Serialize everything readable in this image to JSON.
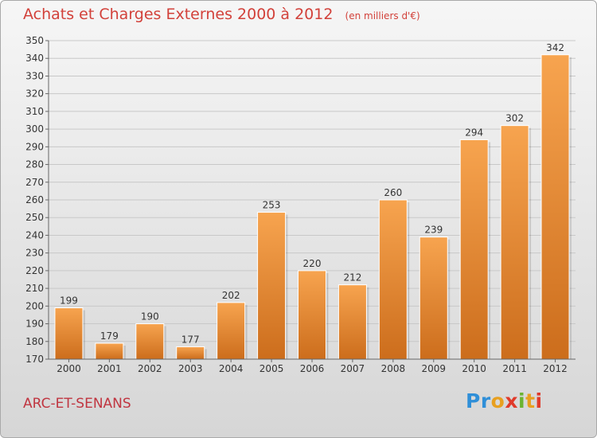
{
  "title": "Achats et Charges Externes 2000 à 2012",
  "unit_label": "(en milliers d'€)",
  "commune": "ARC-ET-SENANS",
  "logo_text": "Proxiti",
  "colors": {
    "bar_top": "#f7a44f",
    "bar_bottom": "#cc6d1c",
    "title": "#d2413a",
    "commune": "#c03540",
    "grid": "#c8c8c8",
    "axis": "#666666"
  },
  "chart_data": {
    "type": "bar",
    "title": "Achats et Charges Externes 2000 à 2012",
    "subtitle": "(en milliers d'€)",
    "xlabel": "",
    "ylabel": "",
    "categories": [
      "2000",
      "2001",
      "2002",
      "2003",
      "2004",
      "2005",
      "2006",
      "2007",
      "2008",
      "2009",
      "2010",
      "2011",
      "2012"
    ],
    "values": [
      199,
      179,
      190,
      177,
      202,
      253,
      220,
      212,
      260,
      239,
      294,
      302,
      342
    ],
    "ylim": [
      170,
      350
    ],
    "yticks": [
      170,
      180,
      190,
      200,
      210,
      220,
      230,
      240,
      250,
      260,
      270,
      280,
      290,
      300,
      310,
      320,
      330,
      340,
      350
    ],
    "grid": true,
    "data_labels": true
  }
}
